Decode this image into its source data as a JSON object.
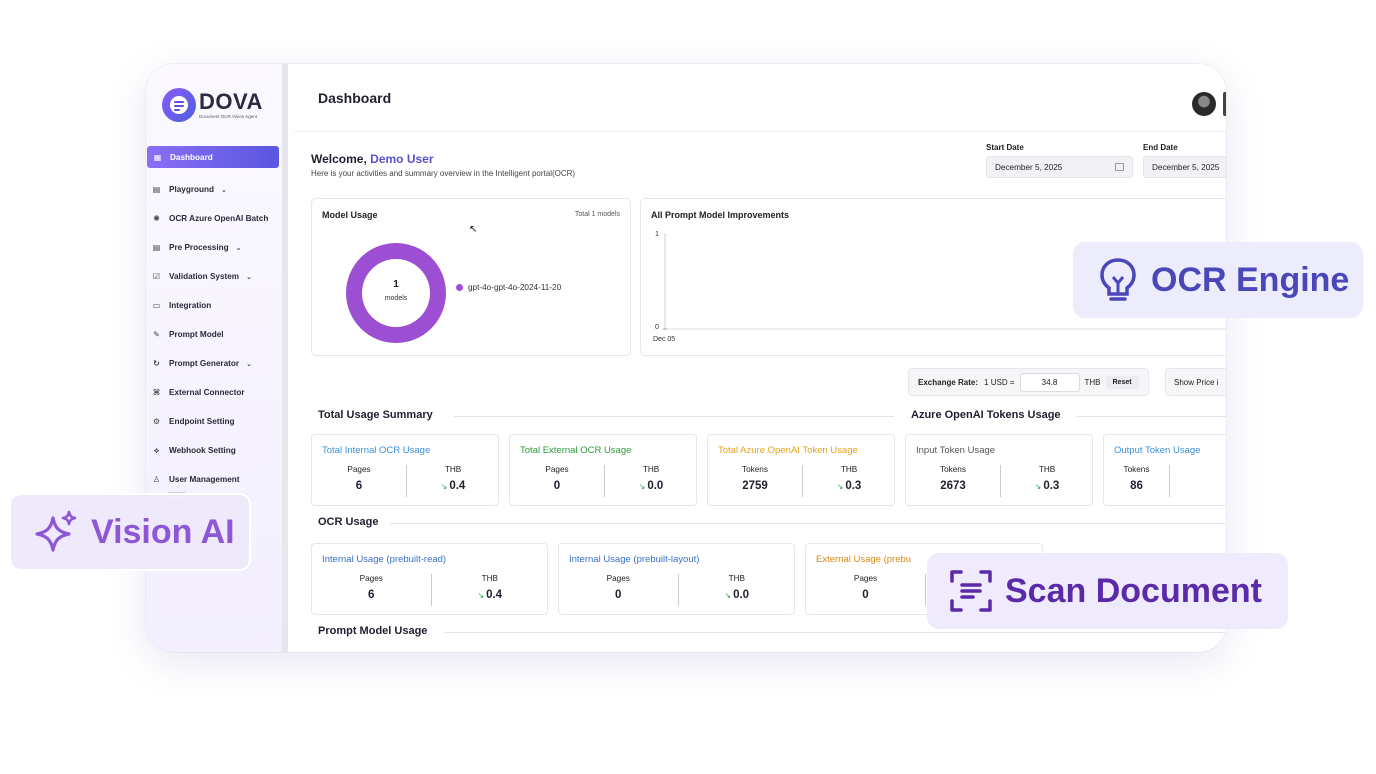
{
  "app": {
    "logo_title": "DOVA",
    "logo_subtitle": "Document OCR Vision Agent"
  },
  "sidebar": {
    "items": [
      {
        "label": "Dashboard",
        "icon": "grid-icon",
        "active": true,
        "has_submenu": false
      },
      {
        "label": "Playground",
        "icon": "document-icon",
        "active": false,
        "has_submenu": true
      },
      {
        "label": "OCR Azure OpenAI Batch",
        "icon": "openai-icon",
        "active": false,
        "has_submenu": false
      },
      {
        "label": "Pre Processing",
        "icon": "document-icon",
        "active": false,
        "has_submenu": true
      },
      {
        "label": "Validation System",
        "icon": "checkbox-icon",
        "active": false,
        "has_submenu": true
      },
      {
        "label": "Integration",
        "icon": "folder-icon",
        "active": false,
        "has_submenu": false
      },
      {
        "label": "Prompt Model",
        "icon": "edit-icon",
        "active": false,
        "has_submenu": false
      },
      {
        "label": "Prompt Generator",
        "icon": "refresh-icon",
        "active": false,
        "has_submenu": true
      },
      {
        "label": "External Connector",
        "icon": "connector-icon",
        "active": false,
        "has_submenu": false
      },
      {
        "label": "Endpoint Setting",
        "icon": "gear-icon",
        "active": false,
        "has_submenu": false
      },
      {
        "label": "Webhook Setting",
        "icon": "webhook-icon",
        "active": false,
        "has_submenu": false
      },
      {
        "label": "User Management",
        "icon": "user-icon",
        "active": false,
        "has_submenu": false
      }
    ]
  },
  "header": {
    "title": "Dashboard"
  },
  "welcome": {
    "greeting": "Welcome,",
    "user": "Demo User",
    "subtitle": "Here is your activities and summary overview in the Intelligent portal(OCR)"
  },
  "dates": {
    "start_label": "Start Date",
    "start_value": "December 5, 2025",
    "end_label": "End Date",
    "end_value": "December 5, 2025"
  },
  "model_usage": {
    "title": "Model Usage",
    "total_note": "Total 1 models",
    "center_value": "1",
    "center_unit": "models",
    "legend": [
      {
        "name": "gpt-4o-gpt-4o-2024-11-20",
        "color": "#9d4fd3"
      }
    ]
  },
  "improvements": {
    "title": "All Prompt Model Improvements",
    "y_top": "1",
    "y_bottom": "0",
    "x_label": "Dec 05"
  },
  "exchange": {
    "label": "Exchange Rate:",
    "unit": "1 USD =",
    "value": "34.8",
    "currency": "THB",
    "reset": "Reset",
    "show_price": "Show Price i"
  },
  "sections": {
    "total_usage": "Total Usage Summary",
    "azure_tokens": "Azure OpenAI Tokens Usage",
    "ocr_usage": "OCR Usage",
    "prompt_usage": "Prompt Model Usage"
  },
  "summary_cards": [
    {
      "title": "Total Internal OCR Usage",
      "color": "#3a8fd9",
      "k1": "Pages",
      "v1": "6",
      "k2": "THB",
      "v2": "0.4"
    },
    {
      "title": "Total External OCR Usage",
      "color": "#2e9a3c",
      "k1": "Pages",
      "v1": "0",
      "k2": "THB",
      "v2": "0.0"
    },
    {
      "title": "Total Azure OpenAI Token Usage",
      "color": "#e8a317",
      "k1": "Tokens",
      "v1": "2759",
      "k2": "THB",
      "v2": "0.3"
    },
    {
      "title": "Input Token Usage",
      "color": "#555555",
      "k1": "Tokens",
      "v1": "2673",
      "k2": "THB",
      "v2": "0.3"
    },
    {
      "title": "Output Token Usage",
      "color": "#3a8fd9",
      "k1": "Tokens",
      "v1": "86",
      "k2": "",
      "v2": ""
    }
  ],
  "ocr_cards": [
    {
      "title": "Internal Usage (prebuilt-read)",
      "color": "#3a6fc9",
      "k1": "Pages",
      "v1": "6",
      "k2": "THB",
      "v2": "0.4"
    },
    {
      "title": "Internal Usage (prebuilt-layout)",
      "color": "#3a6fc9",
      "k1": "Pages",
      "v1": "0",
      "k2": "THB",
      "v2": "0.0"
    },
    {
      "title": "External Usage (prebu",
      "color": "#d98a10",
      "k1": "Pages",
      "v1": "0",
      "k2": "",
      "v2": ""
    }
  ],
  "badges": {
    "ocr_engine": "OCR Engine",
    "vision_ai": "Vision AI",
    "scan_document": "Scan Document"
  },
  "colors": {
    "accent": "#5a57e0",
    "donut": "#9d4fd3",
    "trend_down": "#2aa44f"
  }
}
